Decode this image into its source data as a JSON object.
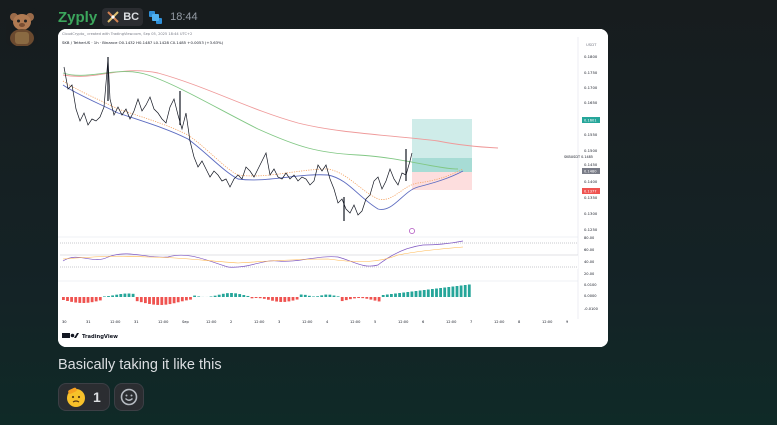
{
  "message": {
    "username": "Zyply",
    "tag": "BC",
    "timestamp": "18:44",
    "text": "Basically taking it like this"
  },
  "chart": {
    "header_line": "CloudCrypto_ created with TradingView.com, Sep 05, 2025 18:44 UTC+2",
    "symbol_line": "SKB / TetherUS · 1h · Binance   O0.1432  H0.1487  L0.1428  C0.1485  +0.0053 (+3.63%)",
    "currency": "USDT",
    "price_ticks": [
      "0.1800",
      "0.1750",
      "0.1700",
      "0.1650",
      "0.1600",
      "0.1550",
      "0.1500",
      "0.1450",
      "0.1400",
      "0.1350",
      "0.1300",
      "0.1250"
    ],
    "tp_label": "0.1601",
    "symbol_price_label": "SKBUSDT  0.1485",
    "entry_label": "0.1480",
    "sl_label": "0.1377",
    "rsi_ticks": [
      "80.00",
      "60.00",
      "40.00",
      "20.00"
    ],
    "macd_ticks": [
      "0.0100",
      "0.0000",
      "-0.0100"
    ],
    "time_ticks": [
      "30",
      "31",
      "12:00",
      "31",
      "12:00",
      "Sep",
      "12:00",
      "2",
      "12:00",
      "3",
      "12:00",
      "4",
      "12:00",
      "5",
      "12:00",
      "6",
      "12:00",
      "7",
      "12:00",
      "8",
      "12:00",
      "9"
    ],
    "brand": "TradingView",
    "colors": {
      "up": "#26a69a",
      "down": "#ef5350",
      "tp_zone": "#b2dfdb",
      "sl_zone": "#ffcdd2",
      "ema_red": "#ef9a9a",
      "ema_green": "#81c784",
      "ema_blue": "#5c6bc0"
    }
  },
  "reactions": [
    {
      "icon": "saluting-face-emoji-icon",
      "count": "1"
    }
  ]
}
